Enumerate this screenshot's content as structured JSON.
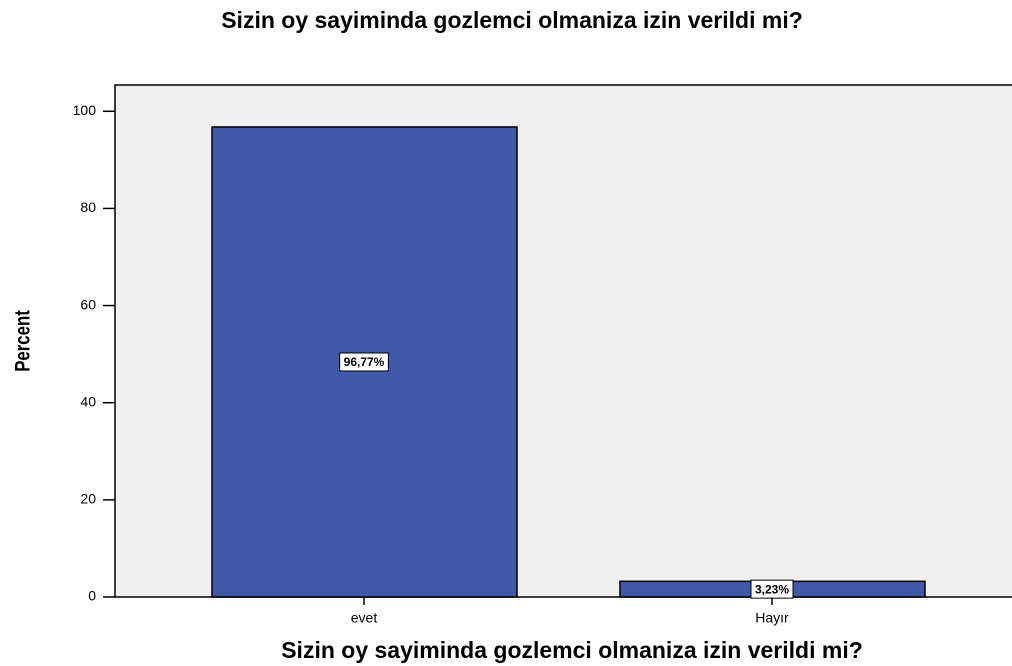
{
  "chart_data": {
    "type": "bar",
    "title": "Sizin oy sayiminda gozlemci olmaniza izin verildi mi?",
    "x_label": "Sizin oy sayiminda gozlemci olmaniza izin verildi mi?",
    "y_label": "Percent",
    "categories": [
      "evet",
      "Hayır"
    ],
    "values": [
      96.77,
      3.23
    ],
    "value_labels": [
      "96,77%",
      "3,23%"
    ],
    "color": "#3f58a8",
    "ylim": [
      0,
      105
    ],
    "yticks": [
      0,
      20,
      40,
      60,
      80,
      100
    ],
    "grid": false
  }
}
